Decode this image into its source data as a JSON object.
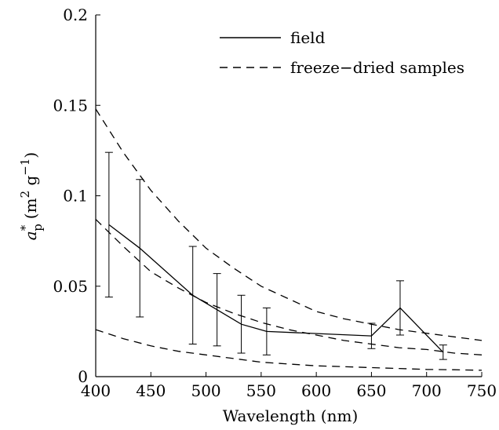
{
  "chart_data": {
    "type": "line",
    "xlabel": "Wavelength (nm)",
    "ylabel": {
      "symbol": "a",
      "superscript_symbol": "*",
      "subscript_symbol": "p",
      "unit_open": "(m",
      "unit_exp1": "2",
      "unit_mid": " g",
      "unit_exp2": "−1",
      "unit_close": ")"
    },
    "xlim": [
      400,
      750
    ],
    "ylim": [
      0,
      0.2
    ],
    "xticks": [
      400,
      450,
      500,
      550,
      600,
      650,
      700,
      750
    ],
    "yticks": [
      0,
      0.05,
      0.1,
      0.15,
      0.2
    ],
    "xtick_labels": [
      "400",
      "450",
      "500",
      "550",
      "600",
      "650",
      "700",
      "750"
    ],
    "ytick_labels": [
      "0",
      "0.05",
      "0.1",
      "0.15",
      "0.2"
    ],
    "grid": false,
    "legend_position": "top-right",
    "legend": [
      {
        "label": "field",
        "style": "solid"
      },
      {
        "label": "freeze−dried samples",
        "style": "dashed"
      }
    ],
    "series": [
      {
        "name": "field",
        "style": "solid",
        "x": [
          412,
          440,
          488,
          510,
          532,
          555,
          650,
          676,
          715
        ],
        "y": [
          0.084,
          0.071,
          0.045,
          0.037,
          0.029,
          0.025,
          0.0225,
          0.038,
          0.0135
        ],
        "error": [
          0.04,
          0.038,
          0.027,
          0.02,
          0.016,
          0.013,
          0.007,
          0.015,
          0.004
        ]
      },
      {
        "name": "freeze−dried samples",
        "style": "dashed",
        "x": [
          400,
          425,
          450,
          475,
          500,
          525,
          550,
          575,
          600,
          625,
          650,
          675,
          700,
          725,
          750
        ],
        "y": [
          0.148,
          0.124,
          0.103,
          0.086,
          0.071,
          0.06,
          0.05,
          0.043,
          0.036,
          0.032,
          0.029,
          0.026,
          0.024,
          0.022,
          0.02
        ]
      },
      {
        "name": "freeze−dried samples",
        "style": "dashed",
        "x": [
          400,
          425,
          450,
          475,
          500,
          525,
          550,
          575,
          600,
          625,
          650,
          675,
          700,
          725,
          750
        ],
        "y": [
          0.087,
          0.072,
          0.058,
          0.049,
          0.041,
          0.035,
          0.03,
          0.026,
          0.023,
          0.02,
          0.018,
          0.016,
          0.015,
          0.013,
          0.012
        ]
      },
      {
        "name": "freeze−dried samples",
        "style": "dashed",
        "x": [
          400,
          425,
          450,
          475,
          500,
          525,
          550,
          575,
          600,
          625,
          650,
          675,
          700,
          725,
          750
        ],
        "y": [
          0.026,
          0.021,
          0.017,
          0.014,
          0.012,
          0.01,
          0.008,
          0.007,
          0.006,
          0.0055,
          0.005,
          0.0045,
          0.004,
          0.0038,
          0.0035
        ]
      }
    ]
  }
}
